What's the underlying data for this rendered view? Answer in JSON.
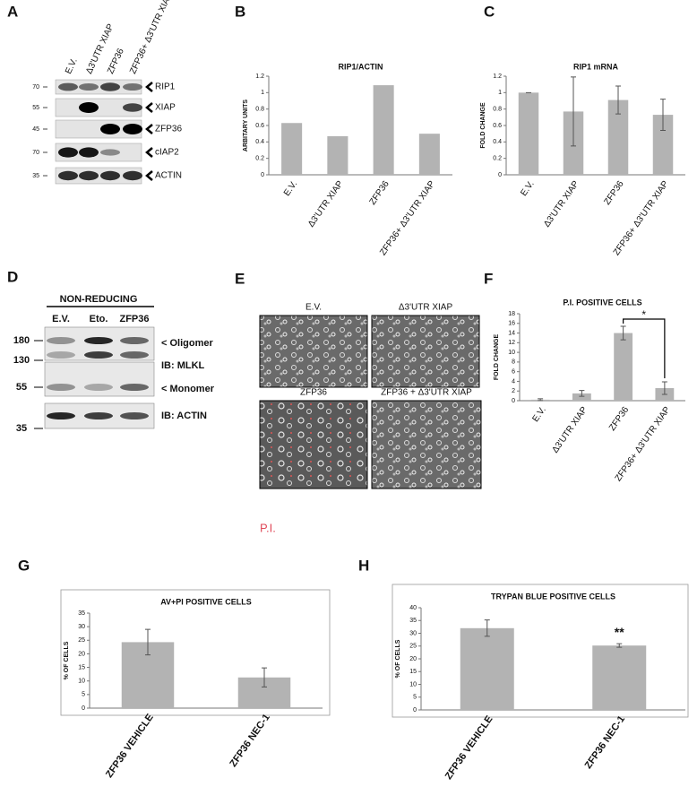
{
  "panel_labels": [
    "A",
    "B",
    "C",
    "D",
    "E",
    "F",
    "G",
    "H"
  ],
  "blot_a": {
    "lanes": [
      "E.V.",
      "Δ3'UTR XIAP",
      "ZFP36",
      "ZFP36+ Δ3'UTR XIAP"
    ],
    "rows": [
      {
        "marker": "70",
        "label": "RIP1"
      },
      {
        "marker": "55",
        "label": "XIAP"
      },
      {
        "marker": "45",
        "label": "ZFP36"
      },
      {
        "marker": "70",
        "label": "cIAP2"
      },
      {
        "marker": "35",
        "label": "ACTIN"
      }
    ]
  },
  "blot_d": {
    "header": "NON-REDUCING",
    "lanes": [
      "E.V.",
      "Eto.",
      "ZFP36"
    ],
    "markers": [
      "180",
      "130",
      "55",
      "35"
    ],
    "labels": [
      "< Oligomer",
      "IB: MLKL",
      "< Monomer",
      "IB: ACTIN"
    ]
  },
  "images_e": {
    "captions": [
      "E.V.",
      "Δ3'UTR XIAP",
      "ZFP36",
      "ZFP36 + Δ3'UTR XIAP"
    ],
    "stain": "P.I."
  },
  "chart_data": [
    {
      "type": "bar",
      "title": "RIP1/ACTIN",
      "y_label": "ARBITARY UNITS",
      "categories": [
        "E.V.",
        "Δ3'UTR XIAP",
        "ZFP36",
        "ZFP36+ Δ3'UTR XIAP"
      ],
      "values": [
        0.63,
        0.47,
        1.09,
        0.5
      ],
      "color": "#b3b3b3",
      "ylim": [
        0,
        1.2
      ],
      "yticks": [
        0,
        0.2,
        0.4,
        0.6,
        0.8,
        1,
        1.2
      ]
    },
    {
      "type": "bar",
      "title": "RIP1 mRNA",
      "y_label": "FOLD CHANGE",
      "categories": [
        "E.V.",
        "Δ3'UTR XIAP",
        "ZFP36",
        "ZFP36+ Δ3'UTR XIAP"
      ],
      "values": [
        1.0,
        0.77,
        0.91,
        0.73
      ],
      "errors": [
        0,
        0.42,
        0.17,
        0.19
      ],
      "color": "#b3b3b3",
      "ylim": [
        0,
        1.2
      ],
      "yticks": [
        0,
        0.2,
        0.4,
        0.6,
        0.8,
        1,
        1.2
      ]
    },
    {
      "type": "bar",
      "title": "P.I. POSITIVE CELLS",
      "y_label": "FOLD CHANGE",
      "categories": [
        "E.V.",
        "Δ3'UTR XIAP",
        "ZFP36",
        "ZFP36+ Δ3'UTR XIAP"
      ],
      "values": [
        0.2,
        1.5,
        14,
        2.6
      ],
      "errors": [
        0.2,
        0.6,
        1.4,
        1.3
      ],
      "color": "#b3b3b3",
      "ylim": [
        0,
        18
      ],
      "yticks": [
        0,
        2,
        4,
        6,
        8,
        10,
        12,
        14,
        16,
        18
      ],
      "annotation": "*"
    },
    {
      "type": "bar",
      "title": "AV+PI POSITIVE CELLS",
      "y_label": "% OF CELLS",
      "categories": [
        "ZFP36 VEHICLE",
        "ZFP36 NEC-1"
      ],
      "values": [
        24.3,
        11.3
      ],
      "errors": [
        4.7,
        3.5
      ],
      "color": "#b3b3b3",
      "ylim": [
        0,
        35
      ],
      "yticks": [
        0,
        5,
        10,
        15,
        20,
        25,
        30,
        35
      ]
    },
    {
      "type": "bar",
      "title": "TRYPAN BLUE POSITIVE CELLS",
      "y_label": "% OF CELLS",
      "categories": [
        "ZFP36 VEHICLE",
        "ZFP36 NEC-1"
      ],
      "values": [
        32,
        25.2
      ],
      "errors": [
        3.2,
        0.7
      ],
      "color": "#b3b3b3",
      "ylim": [
        0,
        40
      ],
      "yticks": [
        0,
        5,
        10,
        15,
        20,
        25,
        30,
        35,
        40
      ],
      "annotation": "**"
    }
  ]
}
